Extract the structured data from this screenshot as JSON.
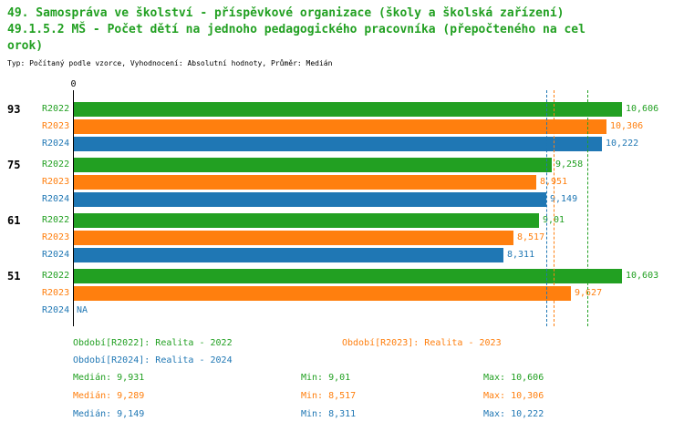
{
  "header": {
    "title_line1": "49. Samospráva ve školství - příspěvkové organizace (školy a školská zařízení)",
    "title_line2": "49.1.5.2 MŠ - Počet dětí na jednoho pedagogického pracovníka (přepočteného na cel",
    "title_line3": "orok)",
    "meta_line": "Typ: Počítaný podle vzorce, Vyhodnocení: Absolutní hodnoty, Průměr: Medián"
  },
  "colors": {
    "green": "#22a022",
    "orange": "#ff7f0e",
    "blue": "#1f77b4",
    "text": "#000000"
  },
  "axis": {
    "zero_label": "0"
  },
  "chart_data": {
    "type": "bar",
    "orientation": "horizontal",
    "title": "49.1.5.2 MŠ - Počet dětí na jednoho pedagogického pracovníka (přepočteného na celorok)",
    "categories": [
      "93",
      "75",
      "61",
      "51"
    ],
    "series": [
      {
        "name": "R2022",
        "color_key": "green",
        "values": [
          10.606,
          9.258,
          9.01,
          10.603
        ],
        "labels": [
          "10,606",
          "9,258",
          "9,01",
          "10,603"
        ]
      },
      {
        "name": "R2023",
        "color_key": "orange",
        "values": [
          10.306,
          8.951,
          8.517,
          9.627
        ],
        "labels": [
          "10,306",
          "8,951",
          "8,517",
          "9,627"
        ]
      },
      {
        "name": "R2024",
        "color_key": "blue",
        "values": [
          10.222,
          9.149,
          8.311,
          null
        ],
        "labels": [
          "10,222",
          "9,149",
          "8,311",
          "NA"
        ]
      }
    ],
    "medians": [
      {
        "series": "R2022",
        "value": 9.931,
        "color_key": "green"
      },
      {
        "series": "R2023",
        "value": 9.289,
        "color_key": "orange"
      },
      {
        "series": "R2024",
        "value": 9.149,
        "color_key": "blue"
      }
    ],
    "xlim": [
      0,
      10.606
    ],
    "grid": false,
    "legend_position": "bottom"
  },
  "legend": [
    {
      "label": "Období[R2022]: Realita - 2022",
      "color_key": "green"
    },
    {
      "label": "Období[R2023]: Realita - 2023",
      "color_key": "orange"
    },
    {
      "label": "Období[R2024]: Realita - 2024",
      "color_key": "blue"
    }
  ],
  "stats": [
    {
      "color_key": "green",
      "median": "Medián: 9,931",
      "min": "Min: 9,01",
      "max": "Max: 10,606"
    },
    {
      "color_key": "orange",
      "median": "Medián: 9,289",
      "min": "Min: 8,517",
      "max": "Max: 10,306"
    },
    {
      "color_key": "blue",
      "median": "Medián: 9,149",
      "min": "Min: 8,311",
      "max": "Max: 10,222"
    }
  ]
}
